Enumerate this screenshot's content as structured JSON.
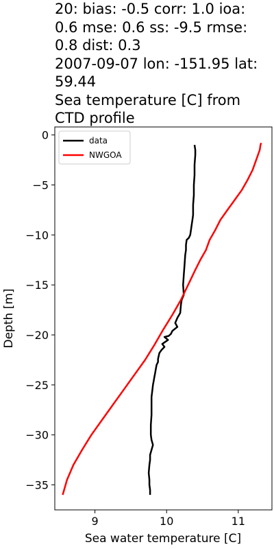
{
  "chart_data": {
    "type": "line",
    "title_lines": [
      "20: bias: -0.5  corr: 1.0  ioa:",
      "0.6  mse: 0.6  ss: -9.5  rmse:",
      "0.8  dist: 0.3",
      "2007-09-07 lon: -151.95 lat:",
      "59.44",
      "Sea temperature [C] from",
      "CTD profile"
    ],
    "xlabel": "Sea water temperature [C]",
    "ylabel": "Depth [m]",
    "xlim": [
      8.44,
      11.47
    ],
    "ylim": [
      -37.5,
      0.8
    ],
    "xticks": [
      9,
      10,
      11
    ],
    "yticks": [
      0,
      -5,
      -10,
      -15,
      -20,
      -25,
      -30,
      -35
    ],
    "ytick_labels": [
      "0",
      "−5",
      "−10",
      "−15",
      "−20",
      "−25",
      "−30",
      "−35"
    ],
    "legend_position": "upper-left",
    "grid": false,
    "series": [
      {
        "name": "data",
        "color": "#000000",
        "x": [
          10.39,
          10.4,
          10.4,
          10.39,
          10.39,
          10.38,
          10.38,
          10.37,
          10.37,
          10.36,
          10.35,
          10.34,
          10.33,
          10.31,
          10.28,
          10.27,
          10.27,
          10.26,
          10.25,
          10.24,
          10.23,
          10.24,
          10.21,
          10.2,
          10.19,
          10.15,
          10.12,
          10.15,
          10.08,
          10.06,
          10.03,
          9.97,
          10.02,
          9.94,
          9.97,
          9.93,
          9.9,
          9.89,
          9.88,
          9.88,
          9.86,
          9.85,
          9.84,
          9.83,
          9.82,
          9.81,
          9.8,
          9.79,
          9.79,
          9.79,
          9.78,
          9.78,
          9.79,
          9.81,
          9.79,
          9.77,
          9.77,
          9.76,
          9.75,
          9.76,
          9.76,
          9.77,
          9.77
        ],
        "y": [
          -1.0,
          -1.5,
          -2.0,
          -3.0,
          -4.0,
          -5.0,
          -6.0,
          -7.0,
          -8.0,
          -8.5,
          -9.0,
          -9.5,
          -10.0,
          -10.3,
          -10.5,
          -11.0,
          -11.5,
          -12.0,
          -13.0,
          -14.0,
          -15.0,
          -16.0,
          -16.5,
          -17.0,
          -17.8,
          -18.3,
          -18.8,
          -19.2,
          -19.6,
          -19.9,
          -20.1,
          -20.2,
          -20.5,
          -20.9,
          -21.2,
          -21.5,
          -21.8,
          -22.1,
          -22.4,
          -22.7,
          -23.0,
          -23.4,
          -23.8,
          -24.2,
          -24.6,
          -25.0,
          -25.6,
          -26.2,
          -27.0,
          -28.0,
          -29.0,
          -30.0,
          -30.5,
          -31.0,
          -31.5,
          -32.0,
          -32.5,
          -33.0,
          -33.8,
          -34.5,
          -35.0,
          -35.5,
          -36.0
        ]
      },
      {
        "name": "NWGOA",
        "color": "#ff0000",
        "x": [
          11.32,
          11.31,
          11.3,
          11.25,
          11.2,
          11.13,
          11.05,
          10.95,
          10.85,
          10.75,
          10.68,
          10.6,
          10.55,
          10.47,
          10.4,
          10.3,
          10.2,
          10.08,
          9.95,
          9.83,
          9.7,
          9.55,
          9.4,
          9.25,
          9.1,
          8.95,
          8.82,
          8.7,
          8.61,
          8.55
        ],
        "y": [
          -0.8,
          -1.0,
          -1.5,
          -2.5,
          -3.5,
          -4.5,
          -5.5,
          -6.5,
          -7.5,
          -8.5,
          -9.5,
          -10.5,
          -11.5,
          -12.5,
          -13.5,
          -15.0,
          -16.5,
          -18.0,
          -19.5,
          -21.0,
          -22.5,
          -24.0,
          -25.5,
          -27.0,
          -28.5,
          -30.0,
          -31.5,
          -33.0,
          -34.5,
          -36.0
        ]
      }
    ]
  }
}
